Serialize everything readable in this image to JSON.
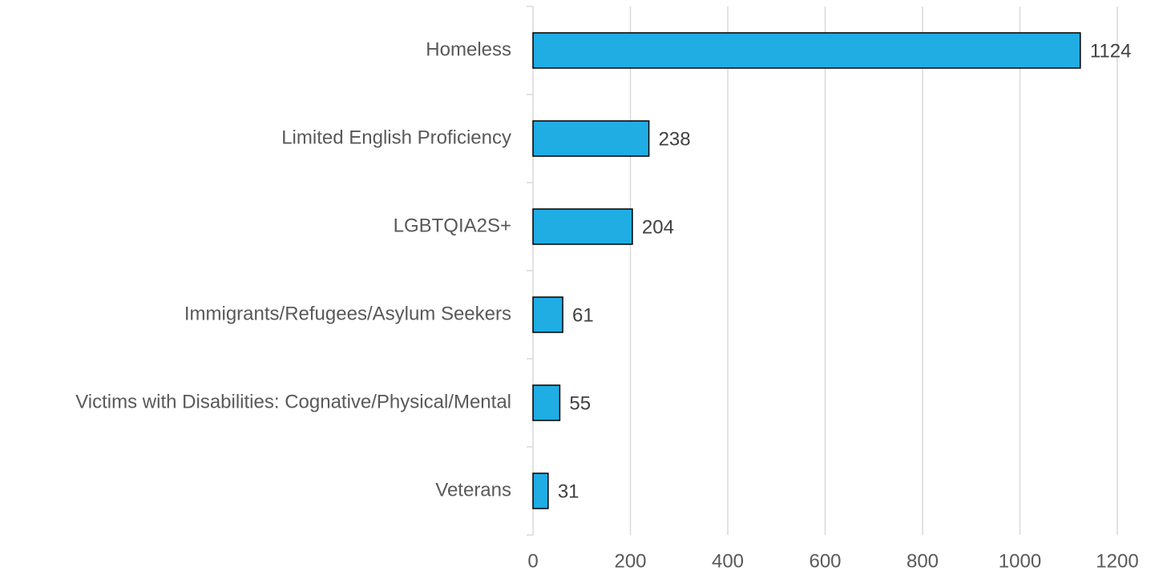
{
  "chart_data": {
    "type": "bar",
    "orientation": "horizontal",
    "categories": [
      "Homeless",
      "Limited English Proficiency",
      "LGBTQIA2S+",
      "Immigrants/Refugees/Asylum Seekers",
      "Victims with Disabilities: Cognative/Physical/Mental",
      "Veterans"
    ],
    "values": [
      1124,
      238,
      204,
      61,
      55,
      31
    ],
    "color": "#1fade4",
    "xlim": [
      0,
      1200
    ],
    "xticks": [
      0,
      200,
      400,
      600,
      800,
      1000,
      1200
    ],
    "grid": true
  }
}
